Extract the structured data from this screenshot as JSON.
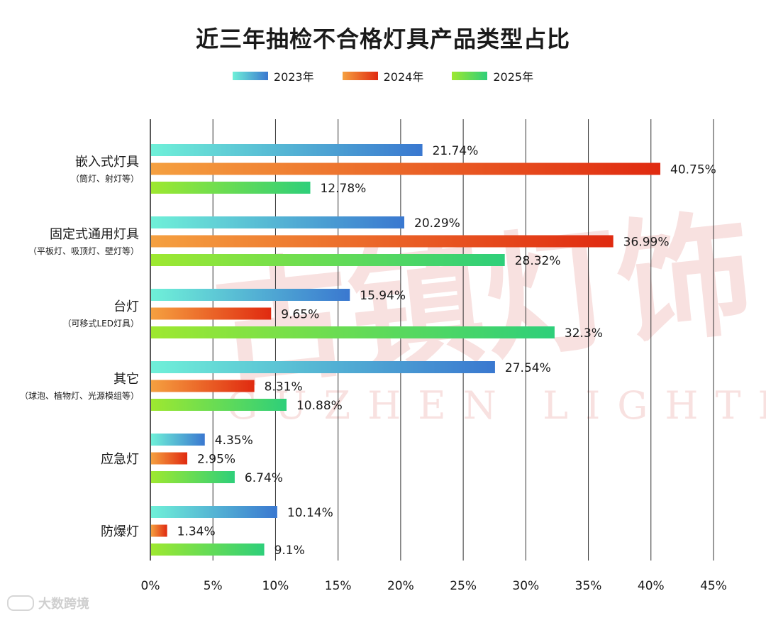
{
  "title": "近三年抽检不合格灯具产品类型占比",
  "watermark": {
    "main": "古镇灯饰",
    "sub": "GUZHEN LIGHTING",
    "footer": "大数跨境"
  },
  "legend": [
    {
      "name": "2023年",
      "from": "#6ff0d8",
      "to": "#3a78d0"
    },
    {
      "name": "2024年",
      "from": "#f5a040",
      "to": "#e02a10"
    },
    {
      "name": "2025年",
      "from": "#9ee830",
      "to": "#2ecf7a"
    }
  ],
  "chart_data": {
    "type": "bar",
    "orientation": "horizontal",
    "title": "近三年抽检不合格灯具产品类型占比",
    "categories": [
      {
        "main": "嵌入式灯具",
        "sub": "（筒灯、射灯等）"
      },
      {
        "main": "固定式通用灯具",
        "sub": "（平板灯、吸顶灯、壁灯等）"
      },
      {
        "main": "台灯",
        "sub": "（可移式LED灯具）"
      },
      {
        "main": "其它",
        "sub": "（球泡、植物灯、光源模组等）"
      },
      {
        "main": "应急灯",
        "sub": ""
      },
      {
        "main": "防爆灯",
        "sub": ""
      }
    ],
    "series": [
      {
        "name": "2023年",
        "values": [
          21.74,
          20.29,
          15.94,
          27.54,
          4.35,
          10.14
        ],
        "labels": [
          "21.74%",
          "20.29%",
          "15.94%",
          "27.54%",
          "4.35%",
          "10.14%"
        ]
      },
      {
        "name": "2024年",
        "values": [
          40.75,
          36.99,
          9.65,
          8.31,
          2.95,
          1.34
        ],
        "labels": [
          "40.75%",
          "36.99%",
          "9.65%",
          "8.31%",
          "2.95%",
          "1.34%"
        ]
      },
      {
        "name": "2025年",
        "values": [
          12.78,
          28.32,
          32.3,
          10.88,
          6.74,
          9.1
        ],
        "labels": [
          "12.78%",
          "28.32%",
          "32.3%",
          "10.88%",
          "6.74%",
          "9.1%"
        ]
      }
    ],
    "xlim": [
      0,
      45
    ],
    "xticks": [
      0,
      5,
      10,
      15,
      20,
      25,
      30,
      35,
      40,
      45
    ],
    "xtick_labels": [
      "0%",
      "5%",
      "10%",
      "15%",
      "20%",
      "25%",
      "30%",
      "35%",
      "40%",
      "45%"
    ],
    "grid": true,
    "legend_position": "top"
  }
}
